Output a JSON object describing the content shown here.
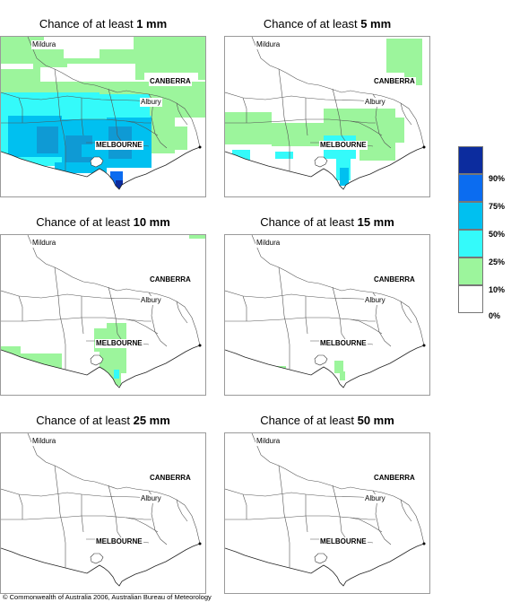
{
  "title_prefix": "Chance of at least ",
  "panels": [
    {
      "amount": "1 mm"
    },
    {
      "amount": "5 mm"
    },
    {
      "amount": "10 mm"
    },
    {
      "amount": "15 mm"
    },
    {
      "amount": "25 mm"
    },
    {
      "amount": "50 mm"
    }
  ],
  "place_labels": {
    "mildura": "Mildura",
    "canberra": "CANBERRA",
    "albury": "Albury",
    "melbourne": "MELBOURNE"
  },
  "legend": {
    "labels": [
      "90%",
      "75%",
      "50%",
      "25%",
      "10%",
      "0%"
    ],
    "colors": [
      "#0c2c9e",
      "#0b6cf0",
      "#00c0f0",
      "#34fafa",
      "#9cf59c",
      "#ffffff"
    ]
  },
  "footer": "© Commonwealth of Australia 2006, Australian Bureau of Meteorology"
}
